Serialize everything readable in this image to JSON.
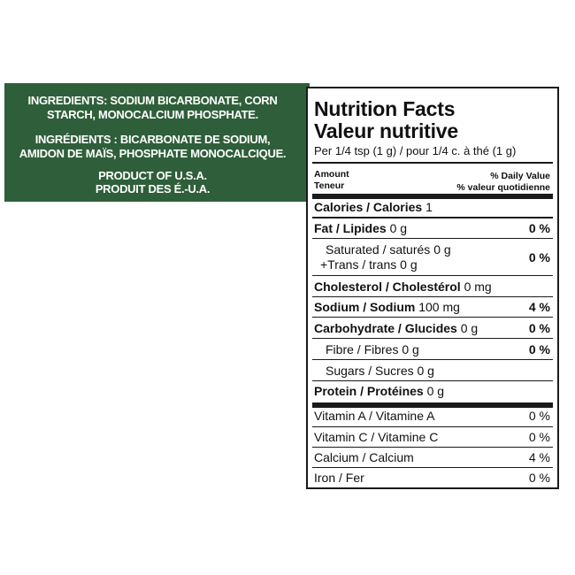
{
  "ingredients": {
    "lines": [
      "INGREDIENTS: SODIUM BICARBONATE, CORN",
      "STARCH, MONOCALCIUM PHOSPHATE.",
      "INGRÉDIENTS : BICARBONATE DE SODIUM,",
      "AMIDON DE MAÏS, PHOSPHATE MONOCALCIQUE.",
      "PRODUCT OF U.S.A.",
      "PRODUIT DES É.-U.A."
    ],
    "panel_color": "#2f5f3a"
  },
  "nutrition": {
    "title_en": "Nutrition Facts",
    "title_fr": "Valeur nutritive",
    "serving": "Per 1/4 tsp (1 g) / pour 1/4 c. à thé (1 g)",
    "amount_en": "Amount",
    "amount_fr": "Teneur",
    "dv_en": "% Daily Value",
    "dv_fr": "% valeur quotidienne",
    "calories_label": "Calories / Calories",
    "calories_value": "1",
    "fat_label": "Fat / Lipides",
    "fat_amount": "0 g",
    "fat_dv": "0 %",
    "saturated_label": "Saturated / saturés",
    "saturated_amount": "0 g",
    "trans_label": "+Trans / trans",
    "trans_amount": "0 g",
    "sat_trans_dv": "0 %",
    "cholesterol_label": "Cholesterol / Cholestérol",
    "cholesterol_amount": "0 mg",
    "sodium_label": "Sodium / Sodium",
    "sodium_amount": "100 mg",
    "sodium_dv": "4 %",
    "carb_label": "Carbohydrate / Glucides",
    "carb_amount": "0 g",
    "carb_dv": "0 %",
    "fibre_label": "Fibre / Fibres",
    "fibre_amount": "0 g",
    "fibre_dv": "0 %",
    "sugars_label": "Sugars / Sucres",
    "sugars_amount": "0 g",
    "protein_label": "Protein / Protéines",
    "protein_amount": "0 g",
    "vitamin_a_label": "Vitamin A / Vitamine A",
    "vitamin_a_dv": "0 %",
    "vitamin_c_label": "Vitamin C / Vitamine C",
    "vitamin_c_dv": "0 %",
    "calcium_label": "Calcium / Calcium",
    "calcium_dv": "4 %",
    "iron_label": "Iron / Fer",
    "iron_dv": "0 %"
  }
}
